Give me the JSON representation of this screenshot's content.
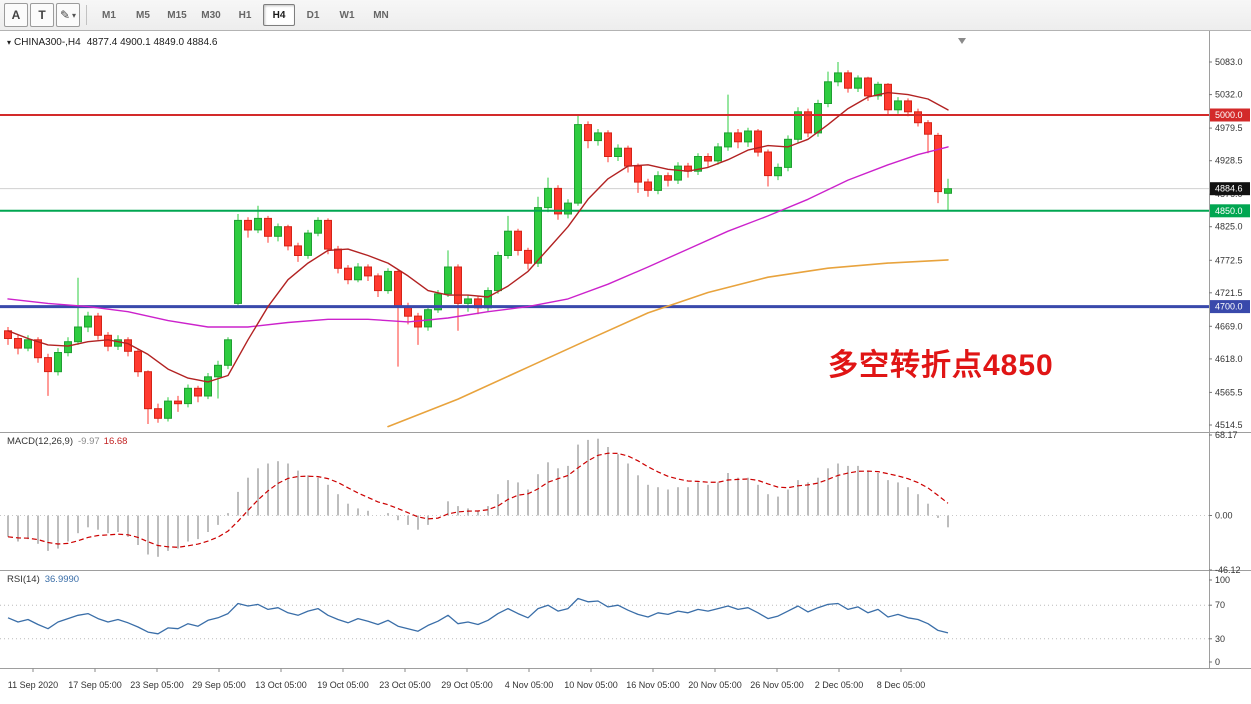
{
  "toolbar": {
    "tools": [
      {
        "name": "arrow-tool",
        "label": "A"
      },
      {
        "name": "text-tool",
        "label": "T"
      },
      {
        "name": "drawing-tools-dropdown",
        "label": "✎",
        "dropdown": "▾"
      }
    ],
    "timeframes": [
      "M1",
      "M5",
      "M15",
      "M30",
      "H1",
      "H4",
      "D1",
      "W1",
      "MN"
    ],
    "selected_timeframe": "H4"
  },
  "chart_header": {
    "marker": "▾",
    "symbol_text": "CHINA300-,H4",
    "ohlc_text": "4877.4 4900.1 4849.0 4884.6"
  },
  "annotation": {
    "text": "多空转折点4850",
    "color": "#e01515"
  },
  "indicators": {
    "macd": {
      "label": "MACD(12,26,9)",
      "value1": "-9.97",
      "value2": "16.68",
      "axis": [
        "68.17",
        "0.00",
        "-46.12"
      ]
    },
    "rsi": {
      "label": "RSI(14)",
      "value": "36.9990",
      "axis": [
        "100",
        "70",
        "30",
        "0"
      ],
      "levels": [
        70,
        30
      ]
    }
  },
  "price_axis": {
    "ticks": [
      "5083.0",
      "5032.0",
      "4979.5",
      "4928.5",
      "4876.0",
      "4825.0",
      "4772.5",
      "4721.5",
      "4669.0",
      "4618.0",
      "4565.5",
      "4514.5"
    ],
    "boxes": [
      {
        "value": "5000.0",
        "color": "#d32a2a"
      },
      {
        "value": "4884.6",
        "color": "#111111"
      },
      {
        "value": "4850.0",
        "color": "#00a651"
      },
      {
        "value": "4700.0",
        "color": "#3949ab"
      }
    ]
  },
  "time_axis": {
    "labels": [
      "11 Sep 2020",
      "17 Sep 05:00",
      "23 Sep 05:00",
      "29 Sep 05:00",
      "13 Oct 05:00",
      "19 Oct 05:00",
      "23 Oct 05:00",
      "29 Oct 05:00",
      "4 Nov 05:00",
      "10 Nov 05:00",
      "16 Nov 05:00",
      "20 Nov 05:00",
      "26 Nov 05:00",
      "2 Dec 05:00",
      "8 Dec 05:00"
    ]
  },
  "colors": {
    "bull": "#2ecc40",
    "bullEdge": "#1f9e32",
    "bear": "#ff3a30",
    "bearEdge": "#d32417",
    "ma_red": "#b22222",
    "ma_magenta": "#cc22cc",
    "ma_orange": "#e8a33d",
    "macd_bar": "#bdbdbd",
    "macd_signal": "#cc0000",
    "rsi_line": "#3a6ea8",
    "grid": "#d0d0d0",
    "axis_line": "#9e9e9e",
    "axis_text": "#333333"
  },
  "chart_data": {
    "type": "candlestick",
    "symbol": "CHINA300-",
    "timeframe": "H4",
    "last_ohlc": {
      "open": 4877.4,
      "high": 4900.1,
      "low": 4849.0,
      "close": 4884.6
    },
    "price_range": [
      4514.5,
      5083.0
    ],
    "hlines": [
      {
        "price": 5000.0,
        "color": "#d32a2a",
        "width": 2
      },
      {
        "price": 4850.0,
        "color": "#00a651",
        "width": 2
      },
      {
        "price": 4700.0,
        "color": "#3949ab",
        "width": 3
      }
    ],
    "current_price_line": 4884.6,
    "candles": [
      [
        4662,
        4668,
        4640,
        4650
      ],
      [
        4650,
        4656,
        4625,
        4635
      ],
      [
        4635,
        4655,
        4630,
        4648
      ],
      [
        4648,
        4652,
        4612,
        4620
      ],
      [
        4620,
        4626,
        4560,
        4598
      ],
      [
        4598,
        4635,
        4592,
        4628
      ],
      [
        4628,
        4652,
        4622,
        4645
      ],
      [
        4645,
        4745,
        4640,
        4668
      ],
      [
        4668,
        4692,
        4660,
        4685
      ],
      [
        4685,
        4690,
        4648,
        4655
      ],
      [
        4655,
        4660,
        4630,
        4638
      ],
      [
        4638,
        4655,
        4632,
        4648
      ],
      [
        4648,
        4652,
        4622,
        4630
      ],
      [
        4630,
        4634,
        4590,
        4598
      ],
      [
        4598,
        4600,
        4516,
        4540
      ],
      [
        4540,
        4548,
        4518,
        4525
      ],
      [
        4525,
        4558,
        4520,
        4552
      ],
      [
        4552,
        4560,
        4535,
        4548
      ],
      [
        4548,
        4578,
        4542,
        4572
      ],
      [
        4572,
        4576,
        4550,
        4560
      ],
      [
        4560,
        4596,
        4555,
        4590
      ],
      [
        4590,
        4615,
        4556,
        4608
      ],
      [
        4608,
        4652,
        4602,
        4648
      ],
      [
        4705,
        4845,
        4698,
        4835
      ],
      [
        4835,
        4840,
        4808,
        4820
      ],
      [
        4820,
        4858,
        4815,
        4838
      ],
      [
        4838,
        4842,
        4800,
        4810
      ],
      [
        4810,
        4830,
        4802,
        4825
      ],
      [
        4825,
        4828,
        4788,
        4795
      ],
      [
        4795,
        4800,
        4770,
        4780
      ],
      [
        4780,
        4820,
        4775,
        4815
      ],
      [
        4815,
        4840,
        4810,
        4835
      ],
      [
        4835,
        4838,
        4782,
        4790
      ],
      [
        4790,
        4795,
        4752,
        4760
      ],
      [
        4760,
        4765,
        4735,
        4742
      ],
      [
        4742,
        4768,
        4738,
        4762
      ],
      [
        4762,
        4766,
        4740,
        4748
      ],
      [
        4748,
        4752,
        4715,
        4725
      ],
      [
        4725,
        4760,
        4720,
        4755
      ],
      [
        4755,
        4758,
        4606,
        4700
      ],
      [
        4700,
        4706,
        4672,
        4685
      ],
      [
        4685,
        4690,
        4640,
        4668
      ],
      [
        4668,
        4700,
        4662,
        4695
      ],
      [
        4695,
        4726,
        4690,
        4720
      ],
      [
        4720,
        4788,
        4715,
        4762
      ],
      [
        4762,
        4766,
        4662,
        4705
      ],
      [
        4705,
        4718,
        4692,
        4712
      ],
      [
        4712,
        4716,
        4688,
        4698
      ],
      [
        4698,
        4730,
        4692,
        4725
      ],
      [
        4725,
        4786,
        4720,
        4780
      ],
      [
        4780,
        4842,
        4775,
        4818
      ],
      [
        4818,
        4822,
        4780,
        4788
      ],
      [
        4788,
        4792,
        4758,
        4768
      ],
      [
        4768,
        4872,
        4762,
        4855
      ],
      [
        4855,
        4902,
        4848,
        4885
      ],
      [
        4885,
        4890,
        4836,
        4845
      ],
      [
        4845,
        4868,
        4838,
        4862
      ],
      [
        4862,
        5000,
        4858,
        4985
      ],
      [
        4985,
        4990,
        4948,
        4960
      ],
      [
        4960,
        4978,
        4952,
        4972
      ],
      [
        4972,
        4976,
        4926,
        4935
      ],
      [
        4935,
        4954,
        4928,
        4948
      ],
      [
        4948,
        4952,
        4910,
        4920
      ],
      [
        4920,
        4924,
        4878,
        4895
      ],
      [
        4895,
        4900,
        4872,
        4882
      ],
      [
        4882,
        4912,
        4876,
        4905
      ],
      [
        4905,
        4910,
        4888,
        4898
      ],
      [
        4898,
        4926,
        4892,
        4920
      ],
      [
        4920,
        4925,
        4902,
        4912
      ],
      [
        4912,
        4940,
        4906,
        4935
      ],
      [
        4935,
        4940,
        4918,
        4928
      ],
      [
        4928,
        4956,
        4922,
        4950
      ],
      [
        4950,
        5032,
        4944,
        4972
      ],
      [
        4972,
        4978,
        4948,
        4958
      ],
      [
        4958,
        4980,
        4950,
        4975
      ],
      [
        4975,
        4978,
        4935,
        4942
      ],
      [
        4942,
        4946,
        4888,
        4905
      ],
      [
        4905,
        4924,
        4898,
        4918
      ],
      [
        4918,
        4968,
        4912,
        4962
      ],
      [
        4962,
        5012,
        4956,
        5005
      ],
      [
        5005,
        5010,
        4965,
        4972
      ],
      [
        4972,
        5024,
        4966,
        5018
      ],
      [
        5018,
        5068,
        5012,
        5052
      ],
      [
        5052,
        5083,
        5045,
        5066
      ],
      [
        5066,
        5070,
        5035,
        5042
      ],
      [
        5042,
        5062,
        5036,
        5058
      ],
      [
        5058,
        5060,
        5022,
        5030
      ],
      [
        5030,
        5052,
        5024,
        5048
      ],
      [
        5048,
        5050,
        5000,
        5008
      ],
      [
        5008,
        5028,
        5002,
        5022
      ],
      [
        5022,
        5026,
        4998,
        5005
      ],
      [
        5005,
        5010,
        4982,
        4988
      ],
      [
        4988,
        4992,
        4940,
        4970
      ],
      [
        4968,
        4972,
        4862,
        4880
      ],
      [
        4877.4,
        4900.1,
        4849.0,
        4884.6
      ]
    ],
    "ma_red_points": [
      [
        0,
        4662
      ],
      [
        2,
        4650
      ],
      [
        4,
        4640
      ],
      [
        6,
        4638
      ],
      [
        8,
        4645
      ],
      [
        10,
        4648
      ],
      [
        12,
        4642
      ],
      [
        14,
        4625
      ],
      [
        16,
        4602
      ],
      [
        18,
        4588
      ],
      [
        20,
        4582
      ],
      [
        22,
        4592
      ],
      [
        24,
        4648
      ],
      [
        26,
        4700
      ],
      [
        28,
        4742
      ],
      [
        30,
        4768
      ],
      [
        32,
        4788
      ],
      [
        34,
        4790
      ],
      [
        36,
        4780
      ],
      [
        38,
        4768
      ],
      [
        40,
        4748
      ],
      [
        42,
        4725
      ],
      [
        44,
        4718
      ],
      [
        46,
        4718
      ],
      [
        48,
        4715
      ],
      [
        50,
        4732
      ],
      [
        52,
        4755
      ],
      [
        54,
        4790
      ],
      [
        56,
        4825
      ],
      [
        58,
        4868
      ],
      [
        60,
        4900
      ],
      [
        62,
        4920
      ],
      [
        64,
        4922
      ],
      [
        66,
        4915
      ],
      [
        68,
        4912
      ],
      [
        70,
        4918
      ],
      [
        72,
        4930
      ],
      [
        74,
        4945
      ],
      [
        76,
        4952
      ],
      [
        78,
        4950
      ],
      [
        80,
        4962
      ],
      [
        82,
        4985
      ],
      [
        84,
        5010
      ],
      [
        86,
        5028
      ],
      [
        88,
        5035
      ],
      [
        90,
        5032
      ],
      [
        92,
        5025
      ],
      [
        94,
        5008
      ]
    ],
    "ma_magenta_points": [
      [
        0,
        4712
      ],
      [
        4,
        4705
      ],
      [
        8,
        4700
      ],
      [
        12,
        4692
      ],
      [
        16,
        4678
      ],
      [
        20,
        4668
      ],
      [
        24,
        4668
      ],
      [
        28,
        4675
      ],
      [
        32,
        4680
      ],
      [
        36,
        4680
      ],
      [
        40,
        4676
      ],
      [
        44,
        4682
      ],
      [
        48,
        4692
      ],
      [
        52,
        4700
      ],
      [
        56,
        4712
      ],
      [
        60,
        4735
      ],
      [
        64,
        4762
      ],
      [
        68,
        4790
      ],
      [
        72,
        4818
      ],
      [
        76,
        4842
      ],
      [
        80,
        4868
      ],
      [
        84,
        4898
      ],
      [
        88,
        4922
      ],
      [
        91,
        4938
      ],
      [
        94,
        4950
      ]
    ],
    "ma_orange_points": [
      [
        38,
        4512
      ],
      [
        45,
        4555
      ],
      [
        52,
        4605
      ],
      [
        58,
        4648
      ],
      [
        64,
        4690
      ],
      [
        70,
        4722
      ],
      [
        76,
        4746
      ],
      [
        82,
        4760
      ],
      [
        88,
        4768
      ],
      [
        94,
        4773
      ]
    ],
    "macd": {
      "histogram": [
        -18,
        -22,
        -20,
        -24,
        -30,
        -28,
        -22,
        -15,
        -10,
        -12,
        -15,
        -14,
        -18,
        -25,
        -33,
        -35,
        -30,
        -28,
        -22,
        -20,
        -14,
        -8,
        2,
        20,
        32,
        40,
        44,
        46,
        44,
        38,
        34,
        32,
        26,
        18,
        10,
        6,
        4,
        0,
        2,
        -4,
        -8,
        -12,
        -8,
        0,
        12,
        8,
        6,
        4,
        8,
        18,
        30,
        28,
        22,
        35,
        45,
        40,
        42,
        60,
        64,
        65,
        58,
        52,
        44,
        34,
        26,
        24,
        22,
        24,
        24,
        28,
        26,
        28,
        36,
        32,
        32,
        26,
        18,
        16,
        22,
        30,
        28,
        32,
        40,
        44,
        42,
        42,
        38,
        36,
        30,
        28,
        24,
        18,
        10,
        -2,
        -9.97
      ],
      "signal_smoothing": 0.25,
      "range": [
        -46.12,
        68.17
      ]
    },
    "rsi": {
      "values": [
        55,
        50,
        53,
        47,
        42,
        50,
        54,
        58,
        60,
        54,
        50,
        53,
        49,
        44,
        38,
        36,
        43,
        42,
        48,
        45,
        52,
        55,
        60,
        72,
        69,
        71,
        65,
        67,
        61,
        58,
        63,
        66,
        58,
        53,
        49,
        54,
        51,
        47,
        52,
        45,
        42,
        39,
        46,
        51,
        58,
        48,
        50,
        47,
        52,
        60,
        66,
        60,
        55,
        66,
        70,
        63,
        66,
        78,
        74,
        75,
        68,
        70,
        64,
        59,
        56,
        61,
        59,
        63,
        61,
        65,
        63,
        66,
        69,
        65,
        67,
        61,
        54,
        57,
        63,
        69,
        62,
        67,
        71,
        72,
        65,
        68,
        61,
        65,
        56,
        59,
        55,
        53,
        48,
        40,
        36.999
      ],
      "range": [
        0,
        100
      ]
    }
  }
}
